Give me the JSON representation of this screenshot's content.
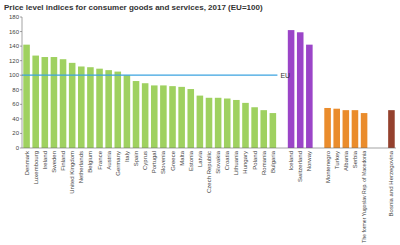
{
  "chart_data": {
    "type": "bar",
    "title": "Price level indices for consumer goods and services, 2017 (EU=100)",
    "categories": [
      "Denmark",
      "Luxembourg",
      "Ireland",
      "Sweden",
      "Finland",
      "United Kingdom",
      "Netherlands",
      "Belgium",
      "France",
      "Austria",
      "Germany",
      "Italy",
      "Spain",
      "Cyprus",
      "Portugal",
      "Slovenia",
      "Greece",
      "Malta",
      "Estonia",
      "Latvia",
      "Czech Republic",
      "Slovakia",
      "Croatia",
      "Lithuania",
      "Hungary",
      "Poland",
      "Romania",
      "Bulgaria",
      null,
      "Iceland",
      "Switzerland",
      "Norway",
      null,
      "Montenegro",
      "Turkey",
      "Albania",
      "Serbia",
      "The former Yugoslav Rep. of Macedonia",
      null,
      null,
      "Bosnia and Herzegovina"
    ],
    "series": [
      {
        "color": "#9fd160",
        "values": [
          142,
          127,
          125,
          125,
          122,
          117,
          112,
          111,
          109,
          107,
          105,
          100,
          92,
          89,
          86,
          86,
          85,
          84,
          81,
          72,
          69,
          69,
          68,
          66,
          62,
          56,
          52,
          48,
          null,
          null,
          null,
          null,
          null,
          null,
          null,
          null,
          null,
          null,
          null,
          null,
          null
        ]
      },
      {
        "color": "#9b45c8",
        "values": [
          null,
          null,
          null,
          null,
          null,
          null,
          null,
          null,
          null,
          null,
          null,
          null,
          null,
          null,
          null,
          null,
          null,
          null,
          null,
          null,
          null,
          null,
          null,
          null,
          null,
          null,
          null,
          null,
          null,
          162,
          159,
          142,
          null,
          null,
          null,
          null,
          null,
          null,
          null,
          null,
          null
        ]
      },
      {
        "color": "#ea8c2c",
        "values": [
          null,
          null,
          null,
          null,
          null,
          null,
          null,
          null,
          null,
          null,
          null,
          null,
          null,
          null,
          null,
          null,
          null,
          null,
          null,
          null,
          null,
          null,
          null,
          null,
          null,
          null,
          null,
          null,
          null,
          null,
          null,
          null,
          null,
          55,
          54,
          52,
          52,
          48,
          null,
          null,
          null
        ]
      },
      {
        "color": "#94412e",
        "values": [
          null,
          null,
          null,
          null,
          null,
          null,
          null,
          null,
          null,
          null,
          null,
          null,
          null,
          null,
          null,
          null,
          null,
          null,
          null,
          null,
          null,
          null,
          null,
          null,
          null,
          null,
          null,
          null,
          null,
          null,
          null,
          null,
          null,
          null,
          null,
          null,
          null,
          null,
          null,
          null,
          52
        ]
      }
    ],
    "annotations": [
      {
        "text": "EU",
        "value": 100,
        "color": "#3ba3e0"
      }
    ],
    "ylim": [
      0,
      180
    ],
    "yticks": [
      0,
      20,
      40,
      60,
      80,
      100,
      120,
      140,
      160,
      180
    ],
    "grid": false
  }
}
